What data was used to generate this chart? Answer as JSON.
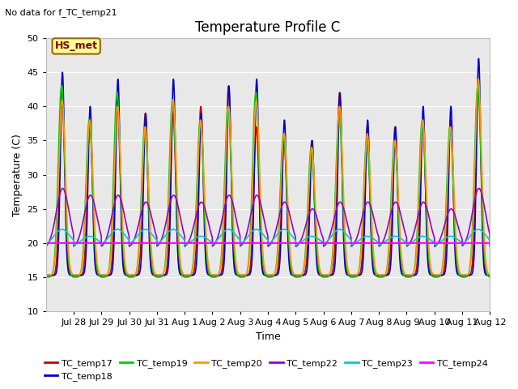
{
  "title": "Temperature Profile C",
  "subtitle": "No data for f_TC_temp21",
  "xlabel": "Time",
  "ylabel": "Temperature (C)",
  "ylim": [
    10,
    50
  ],
  "xlim": [
    0,
    16.0
  ],
  "x_tick_labels": [
    "Jul 28",
    "Jul 29",
    "Jul 30",
    "Jul 31",
    "Aug 1",
    "Aug 2",
    "Aug 3",
    "Aug 4",
    "Aug 5",
    "Aug 6",
    "Aug 7",
    "Aug 8",
    "Aug 9",
    "Aug 10",
    "Aug 11",
    "Aug 12"
  ],
  "x_tick_positions": [
    1,
    2,
    3,
    4,
    5,
    6,
    7,
    8,
    9,
    10,
    11,
    12,
    13,
    14,
    15,
    16
  ],
  "y_ticks": [
    10,
    15,
    20,
    25,
    30,
    35,
    40,
    45,
    50
  ],
  "series_order": [
    "TC_temp17",
    "TC_temp18",
    "TC_temp19",
    "TC_temp20",
    "TC_temp22",
    "TC_temp23",
    "TC_temp24"
  ],
  "series": {
    "TC_temp17": {
      "color": "#cc0000",
      "lw": 1.2
    },
    "TC_temp18": {
      "color": "#0000cc",
      "lw": 1.2
    },
    "TC_temp19": {
      "color": "#00cc00",
      "lw": 1.2
    },
    "TC_temp20": {
      "color": "#ff9900",
      "lw": 1.2
    },
    "TC_temp22": {
      "color": "#9900cc",
      "lw": 1.2
    },
    "TC_temp23": {
      "color": "#00cccc",
      "lw": 1.2
    },
    "TC_temp24": {
      "color": "#ff00ff",
      "lw": 1.5
    }
  },
  "legend_label": "HS_met",
  "legend_bg": "#ffff99",
  "legend_border": "#996600",
  "fig_bg": "#ffffff",
  "plot_bg": "#e8e8e8",
  "grid_color": "#ffffff",
  "title_fontsize": 12,
  "subtitle_fontsize": 8,
  "axis_label_fontsize": 9,
  "tick_fontsize": 8,
  "legend_fontsize": 8
}
